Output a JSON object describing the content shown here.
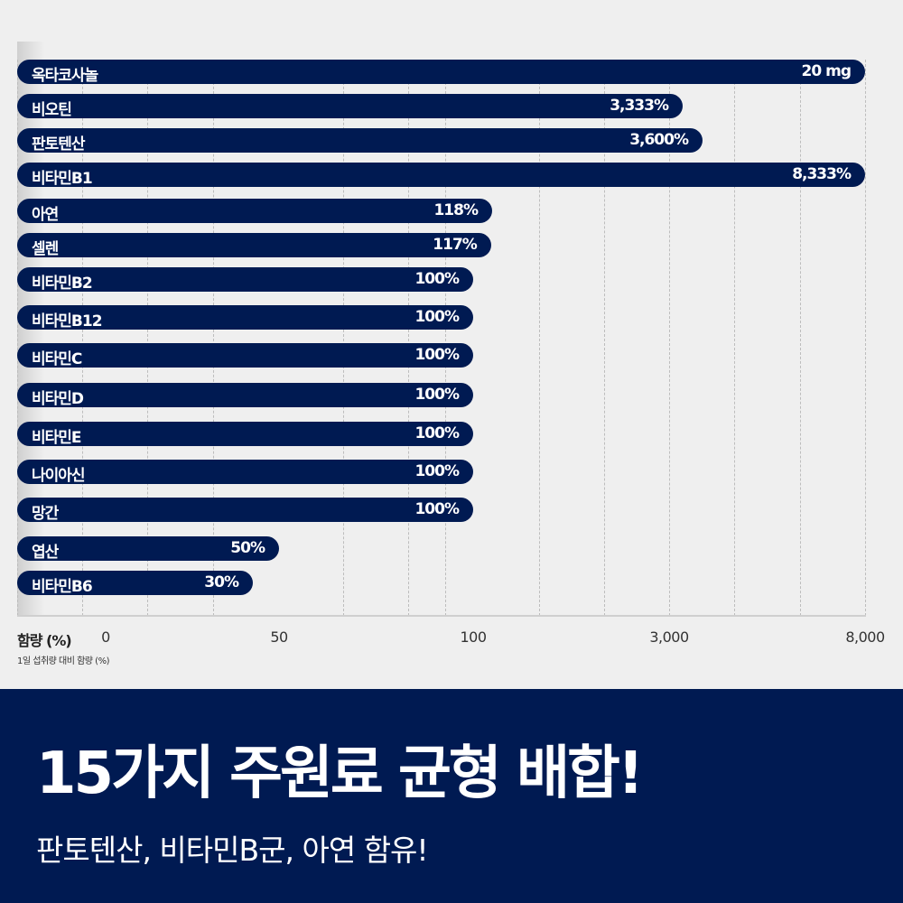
{
  "chart_data": {
    "type": "bar",
    "orientation": "horizontal",
    "xlabel": "함량 (%)",
    "note": "1일 섭취량 대비 함량 (%)",
    "x_ticks": [
      "0",
      "50",
      "100",
      "3,000",
      "8,000"
    ],
    "x_tick_values": [
      0,
      50,
      100,
      3000,
      8000
    ],
    "grid": "vertical dashed",
    "bars": [
      {
        "name": "옥타코사놀",
        "value": null,
        "label": "20 mg"
      },
      {
        "name": "비오틴",
        "value": 3333,
        "label": "3,333%"
      },
      {
        "name": "판토텐산",
        "value": 3600,
        "label": "3,600%"
      },
      {
        "name": "비타민B1",
        "value": 8333,
        "label": "8,333%"
      },
      {
        "name": "아연",
        "value": 118,
        "label": "118%"
      },
      {
        "name": "셀렌",
        "value": 117,
        "label": "117%"
      },
      {
        "name": "비타민B2",
        "value": 100,
        "label": "100%"
      },
      {
        "name": "비타민B12",
        "value": 100,
        "label": "100%"
      },
      {
        "name": "비타민C",
        "value": 100,
        "label": "100%"
      },
      {
        "name": "비타민D",
        "value": 100,
        "label": "100%"
      },
      {
        "name": "비타민E",
        "value": 100,
        "label": "100%"
      },
      {
        "name": "나이아신",
        "value": 100,
        "label": "100%"
      },
      {
        "name": "망간",
        "value": 100,
        "label": "100%"
      },
      {
        "name": "엽산",
        "value": 50,
        "label": "50%"
      },
      {
        "name": "비타민B6",
        "value": 30,
        "label": "30%"
      }
    ],
    "bar_color": "#001a52"
  },
  "banner": {
    "title": "15가지 주원료 균형 배합!",
    "subtitle": "판토텐산, 비타민B군, 아연 함유!"
  }
}
